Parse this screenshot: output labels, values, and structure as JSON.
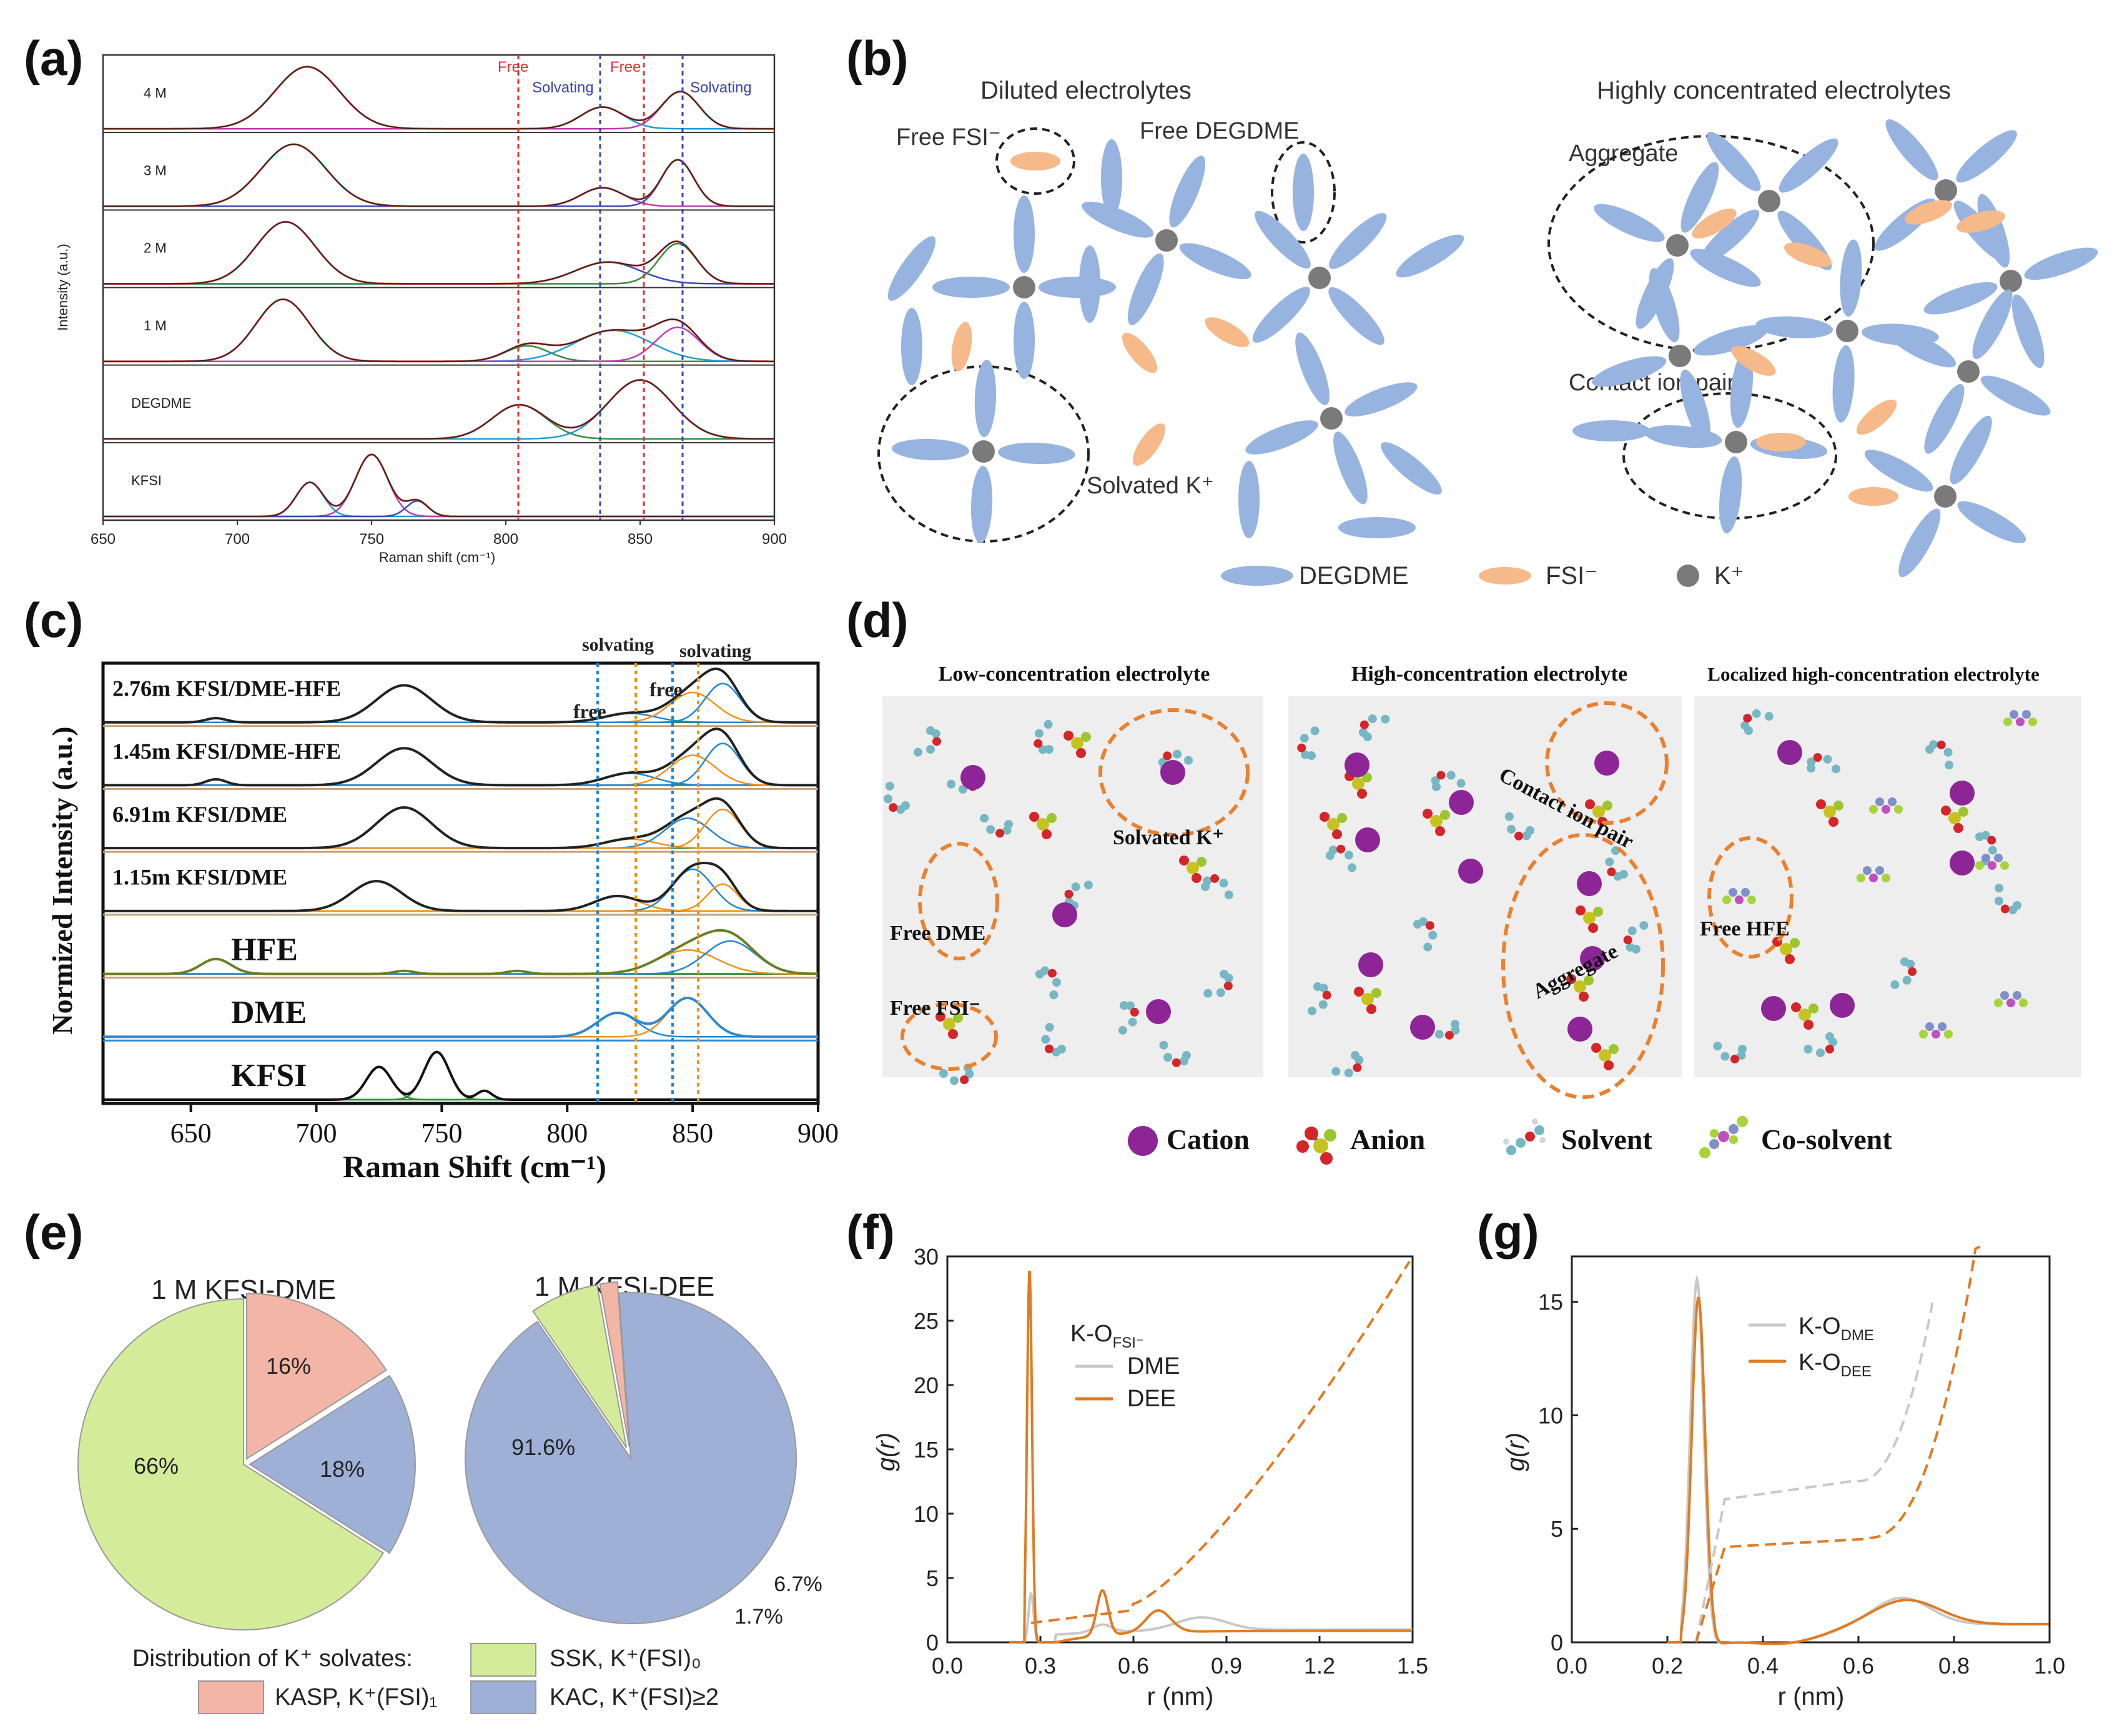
{
  "panel_labels": [
    "(a)",
    "(b)",
    "(c)",
    "(d)",
    "(e)",
    "(f)",
    "(g)"
  ],
  "panel_a": {
    "x_ticks": [
      "650",
      "700",
      "750",
      "800",
      "850",
      "900"
    ],
    "x_label": "Raman shift (cm⁻¹)",
    "y_label": "Intensity (a.u.)",
    "rows": [
      "4 M",
      "3 M",
      "2 M",
      "1 M",
      "DEGDME",
      "KFSI"
    ],
    "annot_free_1": "Free",
    "annot_solvating_1": "Solvating",
    "annot_free_2": "Free",
    "annot_solvating_2": "Solvating"
  },
  "panel_b": {
    "title_left": "Diluted electrolytes",
    "title_right": "Highly concentrated electrolytes",
    "free_fsi": "Free FSI⁻",
    "free_degdme": "Free DEGDME",
    "solvated_k": "Solvated K⁺",
    "aggregate": "Aggregate",
    "contact_ion_pair": "Contact ion pair",
    "legend_degdme": "DEGDME",
    "legend_fsi": "FSI⁻",
    "legend_k": "K⁺"
  },
  "panel_c": {
    "x_ticks": [
      "650",
      "700",
      "750",
      "800",
      "850",
      "900"
    ],
    "x_label": "Raman Shift (cm⁻¹)",
    "y_label": "Normized Intensity (a.u.)",
    "rows": [
      "2.76m KFSI/DME-HFE",
      "1.45m KFSI/DME-HFE",
      "6.91m KFSI/DME",
      "1.15m KFSI/DME",
      "HFE",
      "DME",
      "KFSI"
    ],
    "annot_solvating_1": "solvating",
    "annot_solvating_2": "solvating",
    "annot_free_1": "free",
    "annot_free_2": "free"
  },
  "panel_d": {
    "title_low": "Low-concentration electrolyte",
    "title_high": "High-concentration electrolyte",
    "title_local": "Localized high-concentration electrolyte",
    "solvated_k": "Solvated K⁺",
    "free_dme": "Free DME",
    "free_fsi": "Free FSI⁻",
    "contact_ion_pair": "Contact ion pair",
    "aggregate": "Aggregate",
    "free_hfe": "Free HFE",
    "legend_cation": "Cation",
    "legend_anion": "Anion",
    "legend_solvent": "Solvent",
    "legend_cosolvent": "Co-solvent"
  },
  "panel_e": {
    "title_dme": "1 M KFSI-DME",
    "title_dee": "1 M KFSI-DEE",
    "dme_labels": [
      "66%",
      "16%",
      "18%"
    ],
    "dee_labels": [
      "91.6%",
      "6.7%",
      "1.7%"
    ],
    "legend_title": "Distribution of K⁺ solvates:",
    "legend_ssk": "SSK, K⁺(FSI)₀",
    "legend_kasp": "KASP, K⁺(FSI)₁",
    "legend_kac": "KAC, K⁺(FSI)≥2",
    "colors": {
      "ssk": "#d4ec9a",
      "kasp": "#f3b5a6",
      "kac": "#9fb0d7"
    }
  },
  "panel_f": {
    "x_ticks": [
      "0.0",
      "0.3",
      "0.6",
      "0.9",
      "1.2",
      "1.5"
    ],
    "y_ticks": [
      "0",
      "5",
      "10",
      "15",
      "20",
      "25",
      "30"
    ],
    "x_label": "r (nm)",
    "y_label": "g(r)",
    "legend_header": "K-O",
    "legend_header_sub": "FSI⁻",
    "legend_dme": "DME",
    "legend_dee": "DEE"
  },
  "panel_g": {
    "x_ticks": [
      "0.0",
      "0.2",
      "0.4",
      "0.6",
      "0.8",
      "1.0"
    ],
    "y_ticks": [
      "0",
      "5",
      "10",
      "15"
    ],
    "x_label": "r (nm)",
    "y_label": "g(r)",
    "legend_dme": "K-O",
    "legend_dme_sub": "DME",
    "legend_dee": "K-O",
    "legend_dee_sub": "DEE"
  }
}
